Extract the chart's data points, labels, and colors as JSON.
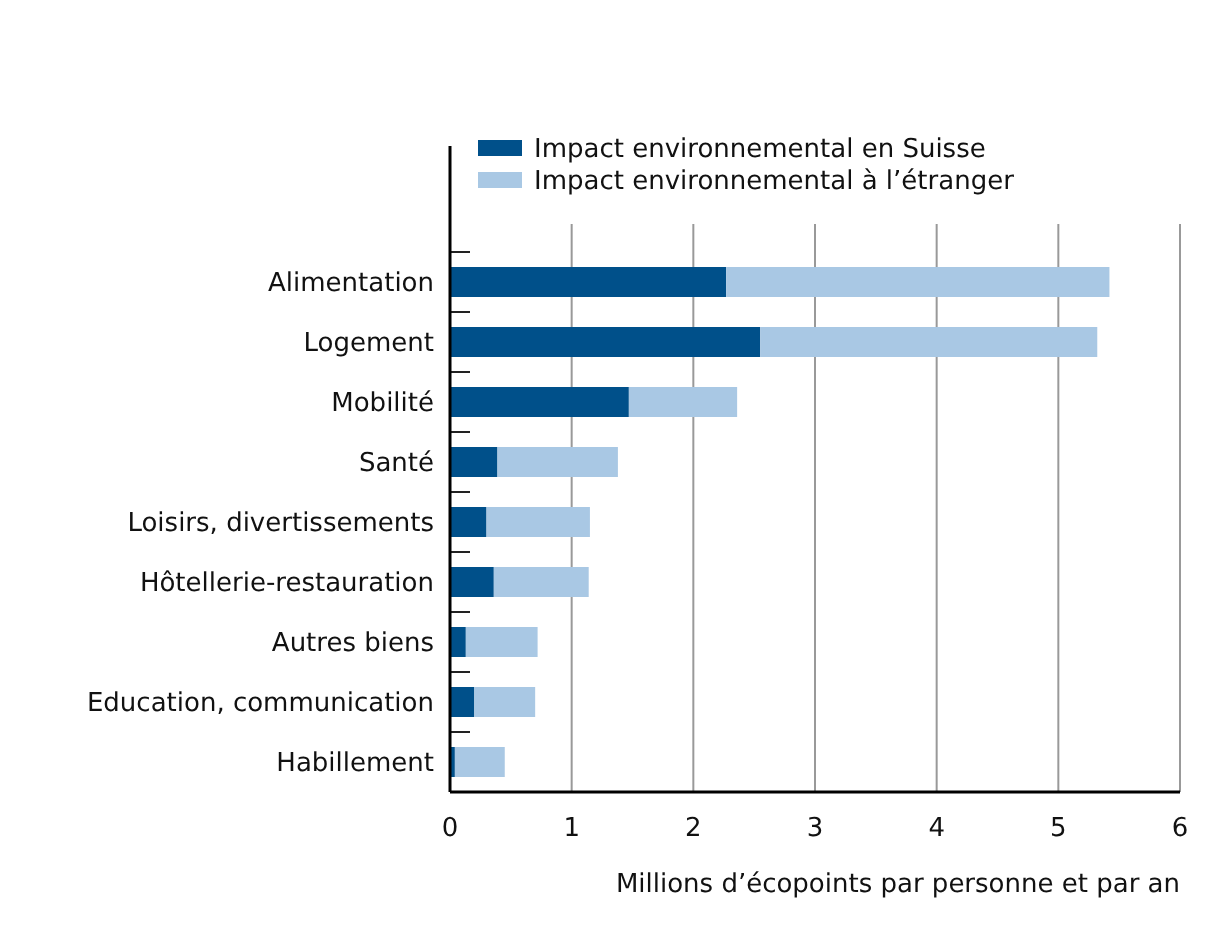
{
  "chart_data": {
    "type": "bar",
    "orientation": "horizontal",
    "stacked": true,
    "categories": [
      "Alimentation",
      "Logement",
      "Mobilité",
      "Santé",
      "Loisirs, divertissements",
      "Hôtellerie-restauration",
      "Autres biens",
      "Education, communication",
      "Habillement"
    ],
    "series": [
      {
        "name": "Impact environnemental en Suisse",
        "color": "#00508a",
        "values": [
          2.27,
          2.55,
          1.47,
          0.39,
          0.3,
          0.36,
          0.13,
          0.2,
          0.04
        ]
      },
      {
        "name": "Impact environnemental à l’étranger",
        "color": "#a9c8e4",
        "values": [
          3.15,
          2.77,
          0.89,
          0.99,
          0.85,
          0.78,
          0.59,
          0.5,
          0.41
        ]
      }
    ],
    "xlim": [
      0,
      6
    ],
    "xticks": [
      0,
      1,
      2,
      3,
      4,
      5,
      6
    ],
    "grid": "x",
    "legend": "top left",
    "xlabel": "Millions d’écopoints par personne et par an"
  }
}
